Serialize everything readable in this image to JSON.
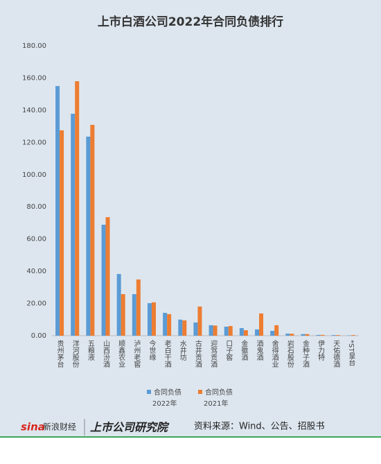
{
  "chart_data": {
    "type": "bar",
    "title": "上市白酒公司2022年合同负债排行",
    "categories": [
      "贵州茅台",
      "洋河股份",
      "五粮液",
      "山西汾酒",
      "顺鑫农业",
      "泸州老窖",
      "今世缘",
      "老白干酒",
      "水井坊",
      "古井贡酒",
      "迎驾贡酒",
      "口子窖",
      "金徽酒",
      "酒鬼酒",
      "舍得酒业",
      "岩石股份",
      "金种子酒",
      "伊力特",
      "天佑德酒",
      "*ST皇台"
    ],
    "series": [
      {
        "name": "合同负债",
        "year": "2022年",
        "color": "#5b9bd5",
        "values": [
          155,
          137.8,
          123.6,
          68.9,
          38.3,
          25.8,
          20.2,
          14.2,
          10,
          8.2,
          6.5,
          5.6,
          4.7,
          3.9,
          3,
          1.3,
          1,
          0.5,
          0.4,
          0.2
        ]
      },
      {
        "name": "合同负债",
        "year": "2021年",
        "color": "#ed7d31",
        "values": [
          127.5,
          158,
          130.9,
          73.6,
          25.8,
          34.9,
          20.7,
          13.4,
          9.5,
          18.1,
          6.3,
          6,
          3.4,
          13.8,
          6.5,
          1.2,
          1,
          0.5,
          0.4,
          0.4
        ]
      }
    ],
    "ylim": [
      0,
      180
    ],
    "yticks": [
      {
        "value": 0,
        "label": "0.00"
      },
      {
        "value": 20,
        "label": "20.00"
      },
      {
        "value": 40,
        "label": "40.00"
      },
      {
        "value": 60,
        "label": "60.00"
      },
      {
        "value": 80,
        "label": "80.00"
      },
      {
        "value": 100,
        "label": "100.00"
      },
      {
        "value": 120,
        "label": "120.00"
      },
      {
        "value": 140,
        "label": "140.00"
      },
      {
        "value": 160,
        "label": "160.00"
      },
      {
        "value": 180,
        "label": "180.00"
      }
    ],
    "grid": false
  },
  "footer": {
    "logo": "新浪财经",
    "institute": "上市公司研究院",
    "source": "资料来源：Wind、公告、招股书"
  }
}
